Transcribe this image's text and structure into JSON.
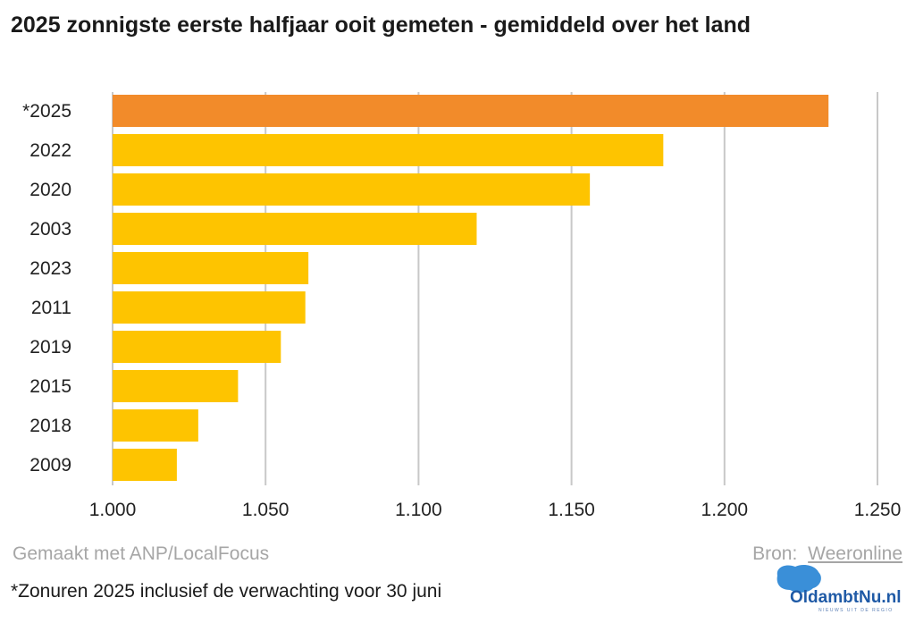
{
  "title": "2025 zonnigste eerste halfjaar ooit gemeten - gemiddeld over het land",
  "credit": "Gemaakt met ANP/LocalFocus",
  "source_label": "Bron:",
  "source_name": "Weeronline",
  "footnote": "*Zonuren 2025 inclusief de verwachting voor 30 juni",
  "logo": {
    "name": "OldambtNu.nl",
    "tagline": "NIEUWS UIT DE REGIO"
  },
  "colors": {
    "highlight": "#f28b2a",
    "bar": "#fec400",
    "grid": "#c8c8c8",
    "axis_text": "#222222"
  },
  "chart_data": {
    "type": "bar",
    "orientation": "horizontal",
    "title": "2025 zonnigste eerste halfjaar ooit gemeten - gemiddeld over het land",
    "categories": [
      "*2025",
      "2022",
      "2020",
      "2003",
      "2023",
      "2011",
      "2019",
      "2015",
      "2018",
      "2009"
    ],
    "values": [
      1234,
      1180,
      1156,
      1119,
      1064,
      1063,
      1055,
      1041,
      1028,
      1021
    ],
    "highlight_index": 0,
    "xlim": [
      1000,
      1250
    ],
    "xticks": [
      1000,
      1050,
      1100,
      1150,
      1200,
      1250
    ],
    "xtick_labels": [
      "1.000",
      "1.050",
      "1.100",
      "1.150",
      "1.200",
      "1.250"
    ],
    "grid": true,
    "legend": "none"
  }
}
